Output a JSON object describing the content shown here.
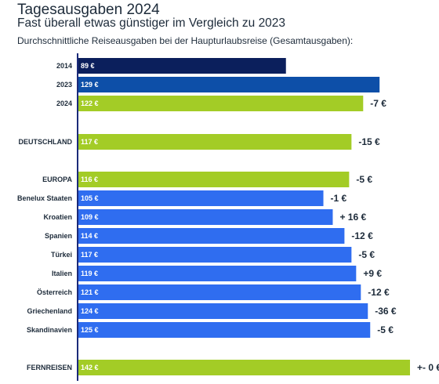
{
  "header": {
    "title": "Tagesausgaben 2024",
    "subtitle": "Fast überall etwas günstiger im Vergleich zu 2023",
    "description": "Durchschnittliche Reiseausgaben bei der Haupturlaubsreise (Gesamtausgaben):"
  },
  "colors": {
    "dark_navy": "#0b1f5c",
    "dark_blue": "#0d4fa8",
    "lime": "#a3cc26",
    "blue": "#2f6df0",
    "axis": "#1b2a7a",
    "text": "#1d2b3a"
  },
  "chart_data": {
    "type": "bar",
    "orientation": "horizontal",
    "unit": "€",
    "categories": [
      "2014",
      "2023",
      "2024",
      "DEUTSCHLAND",
      "EUROPA",
      "Benelux Staaten",
      "Kroatien",
      "Spanien",
      "Türkei",
      "Italien",
      "Österreich",
      "Griechenland",
      "Skandinavien",
      "FERNREISEN"
    ],
    "values": [
      89,
      129,
      122,
      117,
      116,
      105,
      109,
      114,
      117,
      119,
      121,
      124,
      125,
      142
    ],
    "value_labels": [
      "89 €",
      "129 €",
      "122 €",
      "117 €",
      "116 €",
      "105 €",
      "109 €",
      "114 €",
      "117 €",
      "119 €",
      "121 €",
      "124 €",
      "125 €",
      "142 €"
    ],
    "changes": [
      "",
      "",
      "-7 €",
      "-15 €",
      "-5 €",
      "-1 €",
      "+ 16 €",
      "-12 €",
      "-5 €",
      "+9 €",
      "-12 €",
      "-36 €",
      "-5 €",
      "+- 0 €"
    ],
    "bar_colors": [
      "dark_navy",
      "dark_blue",
      "lime",
      "lime",
      "lime",
      "blue",
      "blue",
      "blue",
      "blue",
      "blue",
      "blue",
      "blue",
      "blue",
      "lime"
    ],
    "xlim": [
      0,
      142
    ],
    "grid": false,
    "legend": "none"
  }
}
